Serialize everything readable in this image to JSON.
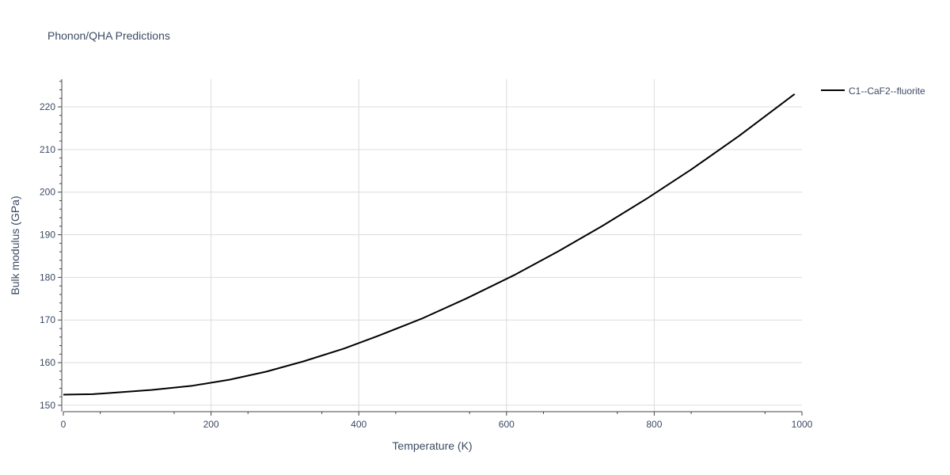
{
  "chart_data": {
    "type": "line",
    "title": "Phonon/QHA Predictions",
    "xlabel": "Temperature (K)",
    "ylabel": "Bulk modulus (GPa)",
    "xlim": [
      0,
      1000
    ],
    "ylim": [
      148.5,
      226.5
    ],
    "x_ticks": [
      0,
      200,
      400,
      600,
      800,
      1000
    ],
    "x_tick_labels": [
      "0",
      "200",
      "400",
      "600",
      "800",
      "1000"
    ],
    "y_ticks": [
      150,
      160,
      170,
      180,
      190,
      200,
      210,
      220
    ],
    "y_tick_labels": [
      "150",
      "160",
      "170",
      "180",
      "190",
      "200",
      "210",
      "220"
    ],
    "grid": true,
    "legend_position": "top-right",
    "series": [
      {
        "name": "C1--CaF2--fluorite",
        "color": "#000000",
        "x": [
          0,
          40,
          80,
          120,
          175,
          225,
          275,
          325,
          380,
          425,
          485,
          545,
          610,
          670,
          730,
          790,
          850,
          915,
          990
        ],
        "y": [
          152.5,
          152.6,
          153.1,
          153.6,
          154.6,
          156.0,
          157.9,
          160.3,
          163.3,
          166.2,
          170.3,
          175.0,
          180.5,
          186.1,
          192.1,
          198.5,
          205.3,
          213.2,
          223.0
        ]
      }
    ]
  }
}
